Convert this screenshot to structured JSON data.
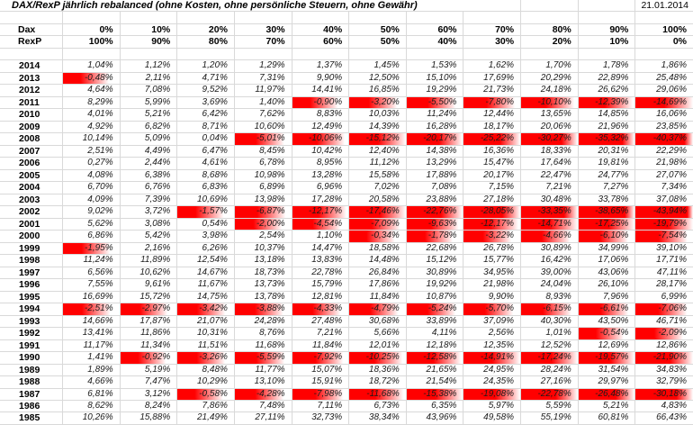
{
  "title": "DAX/RexP jährlich rebalanced (ohne Kosten, ohne persönliche Steuern, ohne Gewähr)",
  "date": "21.01.2014",
  "colors": {
    "negative_bar": "#ff0000",
    "negative_bar_fade": "#ffffff",
    "grid_line": "#d9d9d9"
  },
  "header": {
    "dax_label": "Dax",
    "rexp_label": "RexP",
    "dax_weights": [
      "0%",
      "10%",
      "20%",
      "30%",
      "40%",
      "50%",
      "60%",
      "70%",
      "80%",
      "90%",
      "100%"
    ],
    "rexp_weights": [
      "100%",
      "90%",
      "80%",
      "70%",
      "60%",
      "50%",
      "40%",
      "30%",
      "20%",
      "10%",
      "0%"
    ]
  },
  "table": {
    "rows": [
      {
        "year": "2014",
        "values": [
          "1,04%",
          "1,12%",
          "1,20%",
          "1,29%",
          "1,37%",
          "1,45%",
          "1,53%",
          "1,62%",
          "1,70%",
          "1,78%",
          "1,86%"
        ]
      },
      {
        "year": "2013",
        "values": [
          "-0,48%",
          "2,11%",
          "4,71%",
          "7,31%",
          "9,90%",
          "12,50%",
          "15,10%",
          "17,69%",
          "20,29%",
          "22,89%",
          "25,48%"
        ]
      },
      {
        "year": "2012",
        "values": [
          "4,64%",
          "7,08%",
          "9,52%",
          "11,97%",
          "14,41%",
          "16,85%",
          "19,29%",
          "21,73%",
          "24,18%",
          "26,62%",
          "29,06%"
        ]
      },
      {
        "year": "2011",
        "values": [
          "8,29%",
          "5,99%",
          "3,69%",
          "1,40%",
          "-0,90%",
          "-3,20%",
          "-5,50%",
          "-7,80%",
          "-10,10%",
          "-12,39%",
          "-14,69%"
        ]
      },
      {
        "year": "2010",
        "values": [
          "4,01%",
          "5,21%",
          "6,42%",
          "7,62%",
          "8,83%",
          "10,03%",
          "11,24%",
          "12,44%",
          "13,65%",
          "14,85%",
          "16,06%"
        ]
      },
      {
        "year": "2009",
        "values": [
          "4,92%",
          "6,82%",
          "8,71%",
          "10,60%",
          "12,49%",
          "14,39%",
          "16,28%",
          "18,17%",
          "20,06%",
          "21,96%",
          "23,85%"
        ]
      },
      {
        "year": "2008",
        "values": [
          "10,14%",
          "5,09%",
          "0,04%",
          "-5,01%",
          "-10,06%",
          "-15,12%",
          "-20,17%",
          "-25,22%",
          "-30,27%",
          "-35,32%",
          "-40,37%"
        ]
      },
      {
        "year": "2007",
        "values": [
          "2,51%",
          "4,49%",
          "6,47%",
          "8,45%",
          "10,42%",
          "12,40%",
          "14,38%",
          "16,36%",
          "18,33%",
          "20,31%",
          "22,29%"
        ]
      },
      {
        "year": "2006",
        "values": [
          "0,27%",
          "2,44%",
          "4,61%",
          "6,78%",
          "8,95%",
          "11,12%",
          "13,29%",
          "15,47%",
          "17,64%",
          "19,81%",
          "21,98%"
        ]
      },
      {
        "year": "2005",
        "values": [
          "4,08%",
          "6,38%",
          "8,68%",
          "10,98%",
          "13,28%",
          "15,58%",
          "17,88%",
          "20,17%",
          "22,47%",
          "24,77%",
          "27,07%"
        ]
      },
      {
        "year": "2004",
        "values": [
          "6,70%",
          "6,76%",
          "6,83%",
          "6,89%",
          "6,96%",
          "7,02%",
          "7,08%",
          "7,15%",
          "7,21%",
          "7,27%",
          "7,34%"
        ]
      },
      {
        "year": "2003",
        "values": [
          "4,09%",
          "7,39%",
          "10,69%",
          "13,98%",
          "17,28%",
          "20,58%",
          "23,88%",
          "27,18%",
          "30,48%",
          "33,78%",
          "37,08%"
        ]
      },
      {
        "year": "2002",
        "values": [
          "9,02%",
          "3,72%",
          "-1,57%",
          "-6,87%",
          "-12,17%",
          "-17,46%",
          "-22,76%",
          "-28,05%",
          "-33,35%",
          "-38,65%",
          "-43,94%"
        ]
      },
      {
        "year": "2001",
        "values": [
          "5,62%",
          "3,08%",
          "0,54%",
          "-2,00%",
          "-4,54%",
          "-7,09%",
          "-9,63%",
          "-12,17%",
          "-14,71%",
          "-17,25%",
          "-19,79%"
        ]
      },
      {
        "year": "2000",
        "values": [
          "6,86%",
          "5,42%",
          "3,98%",
          "2,54%",
          "1,10%",
          "-0,34%",
          "-1,78%",
          "-3,22%",
          "-4,66%",
          "-6,10%",
          "-7,54%"
        ]
      },
      {
        "year": "1999",
        "values": [
          "-1,95%",
          "2,16%",
          "6,26%",
          "10,37%",
          "14,47%",
          "18,58%",
          "22,68%",
          "26,78%",
          "30,89%",
          "34,99%",
          "39,10%"
        ]
      },
      {
        "year": "1998",
        "values": [
          "11,24%",
          "11,89%",
          "12,54%",
          "13,18%",
          "13,83%",
          "14,48%",
          "15,12%",
          "15,77%",
          "16,42%",
          "17,06%",
          "17,71%"
        ]
      },
      {
        "year": "1997",
        "values": [
          "6,56%",
          "10,62%",
          "14,67%",
          "18,73%",
          "22,78%",
          "26,84%",
          "30,89%",
          "34,95%",
          "39,00%",
          "43,06%",
          "47,11%"
        ]
      },
      {
        "year": "1996",
        "values": [
          "7,55%",
          "9,61%",
          "11,67%",
          "13,73%",
          "15,79%",
          "17,86%",
          "19,92%",
          "21,98%",
          "24,04%",
          "26,10%",
          "28,17%"
        ]
      },
      {
        "year": "1995",
        "values": [
          "16,69%",
          "15,72%",
          "14,75%",
          "13,78%",
          "12,81%",
          "11,84%",
          "10,87%",
          "9,90%",
          "8,93%",
          "7,96%",
          "6,99%"
        ]
      },
      {
        "year": "1994",
        "values": [
          "-2,51%",
          "-2,97%",
          "-3,42%",
          "-3,88%",
          "-4,33%",
          "-4,79%",
          "-5,24%",
          "-5,70%",
          "-6,15%",
          "-6,61%",
          "-7,06%"
        ]
      },
      {
        "year": "1993",
        "values": [
          "14,66%",
          "17,87%",
          "21,07%",
          "24,28%",
          "27,48%",
          "30,68%",
          "33,89%",
          "37,09%",
          "40,30%",
          "43,50%",
          "46,71%"
        ]
      },
      {
        "year": "1992",
        "values": [
          "13,41%",
          "11,86%",
          "10,31%",
          "8,76%",
          "7,21%",
          "5,66%",
          "4,11%",
          "2,56%",
          "1,01%",
          "-0,54%",
          "-2,09%"
        ]
      },
      {
        "year": "1991",
        "values": [
          "11,17%",
          "11,34%",
          "11,51%",
          "11,68%",
          "11,84%",
          "12,01%",
          "12,18%",
          "12,35%",
          "12,52%",
          "12,69%",
          "12,86%"
        ]
      },
      {
        "year": "1990",
        "values": [
          "1,41%",
          "-0,92%",
          "-3,26%",
          "-5,59%",
          "-7,92%",
          "-10,25%",
          "-12,58%",
          "-14,91%",
          "-17,24%",
          "-19,57%",
          "-21,90%"
        ]
      },
      {
        "year": "1989",
        "values": [
          "1,89%",
          "5,19%",
          "8,48%",
          "11,77%",
          "15,07%",
          "18,36%",
          "21,65%",
          "24,95%",
          "28,24%",
          "31,54%",
          "34,83%"
        ]
      },
      {
        "year": "1988",
        "values": [
          "4,66%",
          "7,47%",
          "10,29%",
          "13,10%",
          "15,91%",
          "18,72%",
          "21,54%",
          "24,35%",
          "27,16%",
          "29,97%",
          "32,79%"
        ]
      },
      {
        "year": "1987",
        "values": [
          "6,81%",
          "3,12%",
          "-0,58%",
          "-4,28%",
          "-7,98%",
          "-11,68%",
          "-15,38%",
          "-19,08%",
          "-22,78%",
          "-26,48%",
          "-30,18%"
        ]
      },
      {
        "year": "1986",
        "values": [
          "8,62%",
          "8,24%",
          "7,86%",
          "7,48%",
          "7,11%",
          "6,73%",
          "6,35%",
          "5,97%",
          "5,59%",
          "5,21%",
          "4,83%"
        ]
      },
      {
        "year": "1985",
        "values": [
          "10,26%",
          "15,88%",
          "21,49%",
          "27,11%",
          "32,73%",
          "38,34%",
          "43,96%",
          "49,58%",
          "55,19%",
          "60,81%",
          "66,43%"
        ]
      }
    ]
  }
}
